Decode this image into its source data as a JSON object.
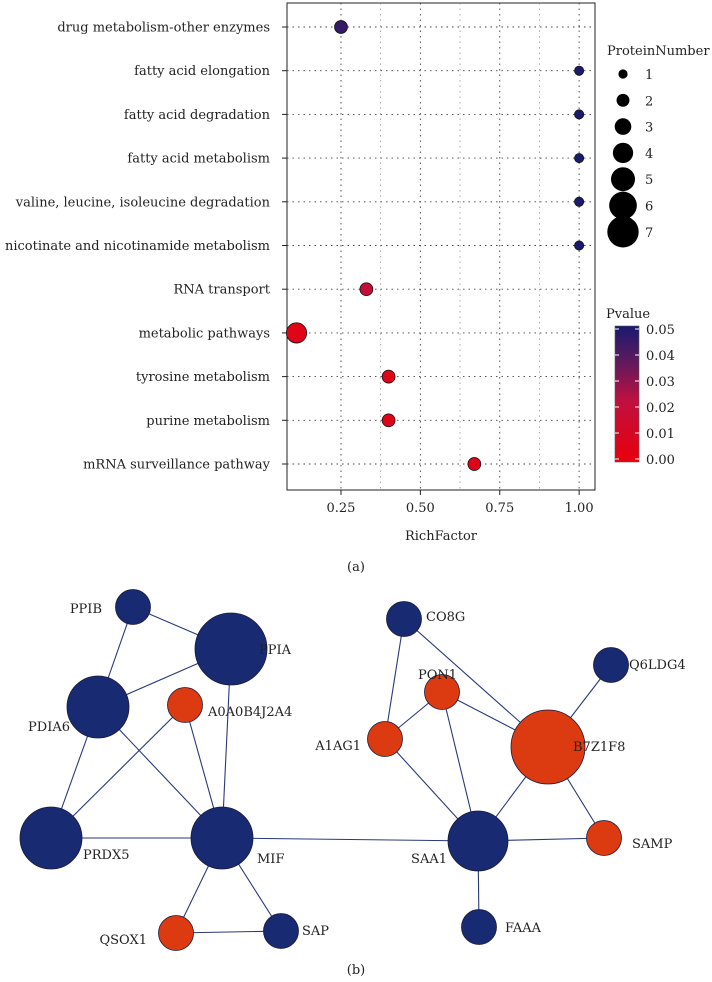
{
  "chart_data": [
    {
      "type": "scatter",
      "panel_label": "(a)",
      "xlabel": "RichFactor",
      "xlim": [
        0.08,
        1.05
      ],
      "xticks": [
        0.25,
        0.5,
        0.75,
        1.0
      ],
      "xtick_labels": [
        "0.25",
        "0.50",
        "0.75",
        "1.00"
      ],
      "grid": true,
      "categories": [
        "drug metabolism-other enzymes",
        "fatty acid elongation",
        "fatty acid degradation",
        "fatty acid metabolism",
        "valine, leucine, isoleucine degradation",
        "nicotinate and nicotinamide metabolism",
        "RNA transport",
        "metabolic pathways",
        "tyrosine metabolism",
        "purine metabolism",
        "mRNA surveillance pathway"
      ],
      "points": [
        {
          "category": "drug metabolism-other enzymes",
          "x": 0.25,
          "size": 2,
          "pvalue": 0.045
        },
        {
          "category": "fatty acid elongation",
          "x": 1.0,
          "size": 1,
          "pvalue": 0.05
        },
        {
          "category": "fatty acid degradation",
          "x": 1.0,
          "size": 1,
          "pvalue": 0.05
        },
        {
          "category": "fatty acid metabolism",
          "x": 1.0,
          "size": 1,
          "pvalue": 0.05
        },
        {
          "category": "valine, leucine, isoleucine degradation",
          "x": 1.0,
          "size": 1,
          "pvalue": 0.05
        },
        {
          "category": "nicotinate and nicotinamide metabolism",
          "x": 1.0,
          "size": 1,
          "pvalue": 0.05
        },
        {
          "category": "RNA transport",
          "x": 0.33,
          "size": 2,
          "pvalue": 0.02
        },
        {
          "category": "metabolic pathways",
          "x": 0.11,
          "size": 4,
          "pvalue": 0.005
        },
        {
          "category": "tyrosine metabolism",
          "x": 0.4,
          "size": 2,
          "pvalue": 0.005
        },
        {
          "category": "purine metabolism",
          "x": 0.4,
          "size": 2,
          "pvalue": 0.005
        },
        {
          "category": "mRNA surveillance pathway",
          "x": 0.67,
          "size": 2,
          "pvalue": 0.005
        }
      ],
      "size_legend": {
        "title": "ProteinNumber",
        "values": [
          1,
          2,
          3,
          4,
          5,
          6,
          7
        ],
        "labels": [
          "1",
          "2",
          "3",
          "4",
          "5",
          "6",
          "7"
        ]
      },
      "color_legend": {
        "title": "Pvalue",
        "range": [
          0,
          0.05
        ],
        "ticks": [
          0.05,
          0.04,
          0.03,
          0.02,
          0.01,
          0.0
        ],
        "tick_labels": [
          "0.05",
          "0.04",
          "0.03",
          "0.02",
          "0.01",
          "0.00"
        ],
        "low_color": "#e8000b",
        "high_color": "#1a1a6e"
      }
    },
    {
      "type": "network",
      "panel_label": "(b)",
      "colors": {
        "blue": "#172a72",
        "orange": "#dc3a10"
      },
      "nodes": [
        {
          "id": "PPIB",
          "label": "PPIB",
          "color": "blue",
          "size": 2
        },
        {
          "id": "PPIA",
          "label": "PPIA",
          "color": "blue",
          "size": 4
        },
        {
          "id": "PDIA6",
          "label": "PDIA6",
          "color": "blue",
          "size": 4
        },
        {
          "id": "A0A0B4J2A4",
          "label": "A0A0B4J2A4",
          "color": "orange",
          "size": 2
        },
        {
          "id": "PRDX5",
          "label": "PRDX5",
          "color": "blue",
          "size": 4
        },
        {
          "id": "MIF",
          "label": "MIF",
          "color": "blue",
          "size": 4
        },
        {
          "id": "QSOX1",
          "label": "QSOX1",
          "color": "orange",
          "size": 2
        },
        {
          "id": "SAP",
          "label": "SAP",
          "color": "blue",
          "size": 2
        },
        {
          "id": "CO8G",
          "label": "CO8G",
          "color": "blue",
          "size": 2
        },
        {
          "id": "Q6LDG4",
          "label": "Q6LDG4",
          "color": "blue",
          "size": 2
        },
        {
          "id": "PON1",
          "label": "PON1",
          "color": "orange",
          "size": 2
        },
        {
          "id": "B7Z1F8",
          "label": "B7Z1F8",
          "color": "orange",
          "size": 4
        },
        {
          "id": "A1AG1",
          "label": "A1AG1",
          "color": "orange",
          "size": 2
        },
        {
          "id": "SAA1",
          "label": "SAA1",
          "color": "blue",
          "size": 4
        },
        {
          "id": "SAMP",
          "label": "SAMP",
          "color": "orange",
          "size": 2
        },
        {
          "id": "FAAA",
          "label": "FAAA",
          "color": "blue",
          "size": 2
        }
      ],
      "edges": [
        [
          "PPIB",
          "PPIA"
        ],
        [
          "PPIB",
          "PDIA6"
        ],
        [
          "PDIA6",
          "PPIA"
        ],
        [
          "PDIA6",
          "PRDX5"
        ],
        [
          "PDIA6",
          "MIF"
        ],
        [
          "PRDX5",
          "A0A0B4J2A4"
        ],
        [
          "PRDX5",
          "MIF"
        ],
        [
          "A0A0B4J2A4",
          "MIF"
        ],
        [
          "PPIA",
          "MIF"
        ],
        [
          "MIF",
          "QSOX1"
        ],
        [
          "MIF",
          "SAP"
        ],
        [
          "QSOX1",
          "SAP"
        ],
        [
          "MIF",
          "SAA1"
        ],
        [
          "CO8G",
          "A1AG1"
        ],
        [
          "CO8G",
          "B7Z1F8"
        ],
        [
          "Q6LDG4",
          "B7Z1F8"
        ],
        [
          "PON1",
          "B7Z1F8"
        ],
        [
          "A1AG1",
          "PON1"
        ],
        [
          "A1AG1",
          "SAA1"
        ],
        [
          "PON1",
          "SAA1"
        ],
        [
          "B7Z1F8",
          "SAA1"
        ],
        [
          "B7Z1F8",
          "SAMP"
        ],
        [
          "SAA1",
          "SAMP"
        ],
        [
          "SAA1",
          "FAAA"
        ]
      ]
    }
  ]
}
